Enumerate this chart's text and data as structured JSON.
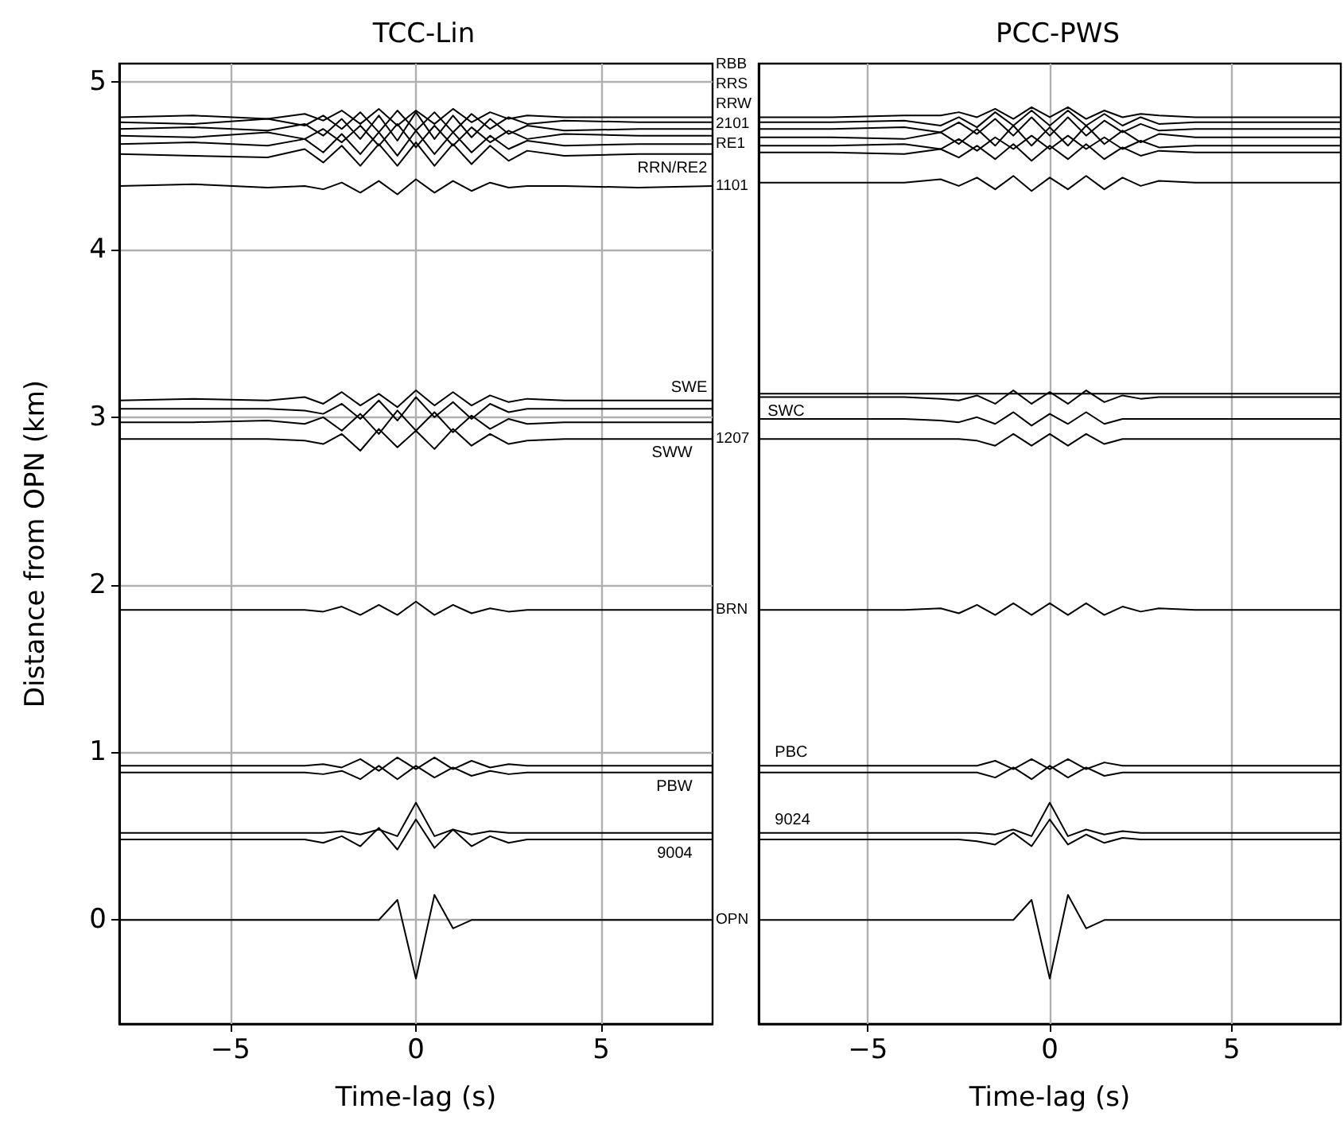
{
  "chart_data": [
    {
      "type": "line",
      "title": "TCC-Lin",
      "xlabel": "Time-lag (s)",
      "ylabel": "Distance from OPN (km)",
      "xlim": [
        -8,
        8
      ],
      "xticks": [
        -5,
        0,
        5
      ],
      "ylim": [
        -0.62,
        5.11
      ],
      "yticks": [
        0,
        1,
        2,
        3,
        4,
        5
      ],
      "grid": true,
      "marker": "none",
      "line_style": "solid",
      "x": [
        -8,
        -6,
        -4,
        -3,
        -2.5,
        -2,
        -1.5,
        -1,
        -0.5,
        0,
        0.5,
        1,
        1.5,
        2,
        2.5,
        3,
        4,
        6,
        8
      ],
      "series": [
        {
          "color": "#000000",
          "values": [
            0,
            0,
            0,
            0,
            0,
            0,
            0,
            0,
            0.12,
            -0.35,
            0.15,
            -0.05,
            0,
            0,
            0,
            0,
            0,
            0,
            0
          ]
        },
        {
          "color": "#000000",
          "values": [
            0.48,
            0.48,
            0.48,
            0.48,
            0.46,
            0.5,
            0.44,
            0.55,
            0.42,
            0.6,
            0.43,
            0.54,
            0.44,
            0.5,
            0.46,
            0.48,
            0.48,
            0.48,
            0.48
          ]
        },
        {
          "color": "#000000",
          "values": [
            0.52,
            0.52,
            0.52,
            0.52,
            0.52,
            0.53,
            0.51,
            0.54,
            0.5,
            0.7,
            0.5,
            0.54,
            0.51,
            0.53,
            0.52,
            0.52,
            0.52,
            0.52,
            0.52
          ]
        },
        {
          "color": "#000000",
          "values": [
            0.88,
            0.88,
            0.88,
            0.88,
            0.87,
            0.89,
            0.84,
            0.92,
            0.84,
            0.92,
            0.85,
            0.91,
            0.86,
            0.89,
            0.87,
            0.88,
            0.88,
            0.88,
            0.88
          ]
        },
        {
          "color": "#000000",
          "values": [
            0.92,
            0.92,
            0.92,
            0.92,
            0.93,
            0.91,
            0.96,
            0.89,
            0.97,
            0.9,
            0.97,
            0.9,
            0.95,
            0.91,
            0.93,
            0.92,
            0.92,
            0.92,
            0.92
          ]
        },
        {
          "color": "#000000",
          "values": [
            1.85,
            1.85,
            1.85,
            1.85,
            1.84,
            1.87,
            1.82,
            1.88,
            1.82,
            1.9,
            1.82,
            1.88,
            1.83,
            1.86,
            1.84,
            1.85,
            1.85,
            1.85,
            1.85
          ]
        },
        {
          "color": "#000000",
          "values": [
            2.87,
            2.87,
            2.87,
            2.86,
            2.84,
            2.9,
            2.8,
            2.93,
            2.82,
            2.92,
            2.81,
            2.93,
            2.83,
            2.9,
            2.84,
            2.86,
            2.87,
            2.87,
            2.87
          ]
        },
        {
          "color": "#000000",
          "values": [
            2.97,
            2.97,
            2.98,
            2.96,
            3,
            2.92,
            3.02,
            2.9,
            3.04,
            2.92,
            3.03,
            2.91,
            3.01,
            2.93,
            2.99,
            2.96,
            2.97,
            2.97,
            2.97
          ]
        },
        {
          "color": "#000000",
          "values": [
            3.05,
            3.05,
            3.05,
            3.04,
            3.02,
            3.08,
            2.99,
            3.1,
            2.98,
            3.12,
            3,
            3.09,
            2.99,
            3.08,
            3.03,
            3.05,
            3.05,
            3.05,
            3.05
          ]
        },
        {
          "color": "#000000",
          "values": [
            3.1,
            3.11,
            3.1,
            3.12,
            3.08,
            3.15,
            3.07,
            3.14,
            3.06,
            3.16,
            3.07,
            3.15,
            3.07,
            3.13,
            3.09,
            3.11,
            3.1,
            3.1,
            3.1
          ]
        },
        {
          "color": "#000000",
          "values": [
            4.38,
            4.39,
            4.37,
            4.38,
            4.36,
            4.4,
            4.34,
            4.41,
            4.33,
            4.42,
            4.34,
            4.41,
            4.35,
            4.4,
            4.37,
            4.38,
            4.38,
            4.37,
            4.38
          ]
        },
        {
          "color": "#000000",
          "values": [
            4.57,
            4.56,
            4.55,
            4.6,
            4.52,
            4.62,
            4.5,
            4.63,
            4.5,
            4.64,
            4.5,
            4.63,
            4.51,
            4.62,
            4.53,
            4.59,
            4.56,
            4.57,
            4.57
          ]
        },
        {
          "color": "#000000",
          "values": [
            4.63,
            4.64,
            4.62,
            4.66,
            4.58,
            4.69,
            4.57,
            4.7,
            4.56,
            4.71,
            4.57,
            4.7,
            4.58,
            4.68,
            4.6,
            4.65,
            4.62,
            4.63,
            4.63
          ]
        },
        {
          "color": "#000000",
          "values": [
            4.68,
            4.67,
            4.7,
            4.66,
            4.72,
            4.64,
            4.74,
            4.62,
            4.75,
            4.61,
            4.74,
            4.62,
            4.73,
            4.64,
            4.71,
            4.66,
            4.69,
            4.68,
            4.68
          ]
        },
        {
          "color": "#000000",
          "values": [
            4.72,
            4.73,
            4.71,
            4.75,
            4.68,
            4.78,
            4.66,
            4.8,
            4.65,
            4.82,
            4.66,
            4.8,
            4.67,
            4.78,
            4.69,
            4.74,
            4.71,
            4.72,
            4.72
          ]
        },
        {
          "color": "#000000",
          "values": [
            4.76,
            4.75,
            4.78,
            4.74,
            4.8,
            4.72,
            4.82,
            4.7,
            4.83,
            4.71,
            4.82,
            4.7,
            4.81,
            4.72,
            4.79,
            4.75,
            4.77,
            4.76,
            4.76
          ]
        },
        {
          "color": "#000000",
          "values": [
            4.79,
            4.8,
            4.78,
            4.81,
            4.77,
            4.83,
            4.75,
            4.84,
            4.74,
            4.83,
            4.75,
            4.84,
            4.76,
            4.82,
            4.78,
            4.8,
            4.79,
            4.79,
            4.79
          ]
        }
      ],
      "annotations": [
        {
          "text": "RBB",
          "x": 8,
          "y": 4.79
        },
        {
          "text": "RRS",
          "x": 8,
          "y": 4.76
        },
        {
          "text": "RRW",
          "x": 8,
          "y": 4.72
        },
        {
          "text": "2101",
          "x": 8,
          "y": 4.68
        },
        {
          "text": "RE1",
          "x": 8,
          "y": 4.63
        },
        {
          "text": "RRN/RE2",
          "x": 7.9,
          "y": 4.57
        },
        {
          "text": "1101",
          "x": 8,
          "y": 4.38
        },
        {
          "text": "SWE",
          "x": 7.9,
          "y": 3.1
        },
        {
          "text": "SWW",
          "x": 7.5,
          "y": 2.97
        },
        {
          "text": "1207",
          "x": 8,
          "y": 2.87
        },
        {
          "text": "BRN",
          "x": 8,
          "y": 1.85
        },
        {
          "text": "PBW",
          "x": 7.5,
          "y": 0.88
        },
        {
          "text": "9004",
          "x": 7.5,
          "y": 0.48
        },
        {
          "text": "OPN",
          "x": 8,
          "y": 0
        }
      ]
    },
    {
      "type": "line",
      "title": "PCC-PWS",
      "xlabel": "Time-lag (s)",
      "xlim": [
        -8,
        8
      ],
      "xticks": [
        -5,
        0,
        5
      ],
      "ylim": [
        -0.62,
        5.11
      ],
      "tick_labels": "x",
      "grid": "x",
      "marker": "none",
      "line_style": "solid",
      "x": [
        -8,
        -6,
        -4,
        -3,
        -2.5,
        -2,
        -1.5,
        -1,
        -0.5,
        0,
        0.5,
        1,
        1.5,
        2,
        2.5,
        3,
        4,
        6,
        8
      ],
      "series": [
        {
          "color": "#000000",
          "values": [
            0,
            0,
            0,
            0,
            0,
            0,
            0,
            0,
            0.12,
            -0.35,
            0.15,
            -0.05,
            0,
            0,
            0,
            0,
            0,
            0,
            0
          ]
        },
        {
          "color": "#000000",
          "values": [
            0.48,
            0.48,
            0.48,
            0.48,
            0.48,
            0.47,
            0.45,
            0.52,
            0.44,
            0.6,
            0.45,
            0.51,
            0.46,
            0.49,
            0.48,
            0.48,
            0.48,
            0.48,
            0.48
          ]
        },
        {
          "color": "#000000",
          "values": [
            0.52,
            0.52,
            0.52,
            0.52,
            0.52,
            0.52,
            0.51,
            0.54,
            0.5,
            0.7,
            0.5,
            0.54,
            0.51,
            0.53,
            0.52,
            0.52,
            0.52,
            0.52,
            0.52
          ]
        },
        {
          "color": "#000000",
          "values": [
            0.88,
            0.88,
            0.88,
            0.88,
            0.88,
            0.88,
            0.85,
            0.91,
            0.84,
            0.92,
            0.85,
            0.91,
            0.86,
            0.88,
            0.88,
            0.88,
            0.88,
            0.88,
            0.88
          ]
        },
        {
          "color": "#000000",
          "values": [
            0.92,
            0.92,
            0.92,
            0.92,
            0.92,
            0.92,
            0.95,
            0.9,
            0.96,
            0.9,
            0.96,
            0.9,
            0.94,
            0.92,
            0.92,
            0.92,
            0.92,
            0.92,
            0.92
          ]
        },
        {
          "color": "#000000",
          "values": [
            1.85,
            1.85,
            1.85,
            1.86,
            1.83,
            1.88,
            1.82,
            1.89,
            1.82,
            1.89,
            1.82,
            1.89,
            1.82,
            1.87,
            1.84,
            1.86,
            1.85,
            1.85,
            1.85
          ]
        },
        {
          "color": "#000000",
          "values": [
            2.87,
            2.87,
            2.87,
            2.87,
            2.87,
            2.86,
            2.83,
            2.9,
            2.83,
            2.9,
            2.83,
            2.9,
            2.84,
            2.87,
            2.87,
            2.87,
            2.87,
            2.87,
            2.87
          ]
        },
        {
          "color": "#000000",
          "values": [
            2.99,
            2.99,
            2.99,
            2.98,
            2.97,
            3,
            2.96,
            3.03,
            2.95,
            3.02,
            2.96,
            3.03,
            2.96,
            2.99,
            2.99,
            2.99,
            2.99,
            2.99,
            2.99
          ]
        },
        {
          "color": "#000000",
          "values": [
            3.12,
            3.12,
            3.12,
            3.11,
            3.1,
            3.13,
            3.08,
            3.16,
            3.08,
            3.15,
            3.08,
            3.16,
            3.09,
            3.13,
            3.11,
            3.12,
            3.12,
            3.12,
            3.12
          ]
        },
        {
          "color": "#000000",
          "values": [
            3.14,
            3.14,
            3.14,
            3.14,
            3.14,
            3.14,
            3.14,
            3.14,
            3.14,
            3.14,
            3.14,
            3.14,
            3.14,
            3.14,
            3.14,
            3.14,
            3.14,
            3.14,
            3.14
          ]
        },
        {
          "color": "#000000",
          "values": [
            4.4,
            4.4,
            4.4,
            4.42,
            4.38,
            4.43,
            4.36,
            4.44,
            4.35,
            4.43,
            4.36,
            4.44,
            4.36,
            4.43,
            4.38,
            4.41,
            4.4,
            4.4,
            4.4
          ]
        },
        {
          "color": "#000000",
          "values": [
            4.58,
            4.58,
            4.57,
            4.6,
            4.55,
            4.62,
            4.54,
            4.63,
            4.53,
            4.62,
            4.54,
            4.63,
            4.54,
            4.61,
            4.56,
            4.59,
            4.58,
            4.58,
            4.58
          ]
        },
        {
          "color": "#000000",
          "values": [
            4.62,
            4.62,
            4.63,
            4.6,
            4.66,
            4.59,
            4.67,
            4.6,
            4.68,
            4.6,
            4.68,
            4.6,
            4.67,
            4.6,
            4.65,
            4.61,
            4.62,
            4.62,
            4.62
          ]
        },
        {
          "color": "#000000",
          "values": [
            4.67,
            4.67,
            4.66,
            4.7,
            4.63,
            4.72,
            4.62,
            4.74,
            4.62,
            4.73,
            4.62,
            4.74,
            4.63,
            4.71,
            4.64,
            4.69,
            4.67,
            4.67,
            4.67
          ]
        },
        {
          "color": "#000000",
          "values": [
            4.72,
            4.72,
            4.73,
            4.7,
            4.76,
            4.69,
            4.78,
            4.68,
            4.79,
            4.68,
            4.79,
            4.68,
            4.77,
            4.7,
            4.75,
            4.71,
            4.72,
            4.72,
            4.72
          ]
        },
        {
          "color": "#000000",
          "values": [
            4.76,
            4.76,
            4.77,
            4.74,
            4.79,
            4.73,
            4.82,
            4.74,
            4.83,
            4.74,
            4.83,
            4.74,
            4.81,
            4.74,
            4.79,
            4.75,
            4.76,
            4.76,
            4.76
          ]
        },
        {
          "color": "#000000",
          "values": [
            4.79,
            4.79,
            4.8,
            4.8,
            4.82,
            4.79,
            4.84,
            4.78,
            4.85,
            4.79,
            4.85,
            4.78,
            4.83,
            4.79,
            4.81,
            4.8,
            4.79,
            4.79,
            4.79
          ]
        }
      ],
      "annotations": [
        {
          "text": "SWC",
          "x": -7.8,
          "y": 3.12
        },
        {
          "text": "PBC",
          "x": -7.6,
          "y": 0.92
        },
        {
          "text": "9024",
          "x": -7.6,
          "y": 0.52
        }
      ]
    }
  ]
}
